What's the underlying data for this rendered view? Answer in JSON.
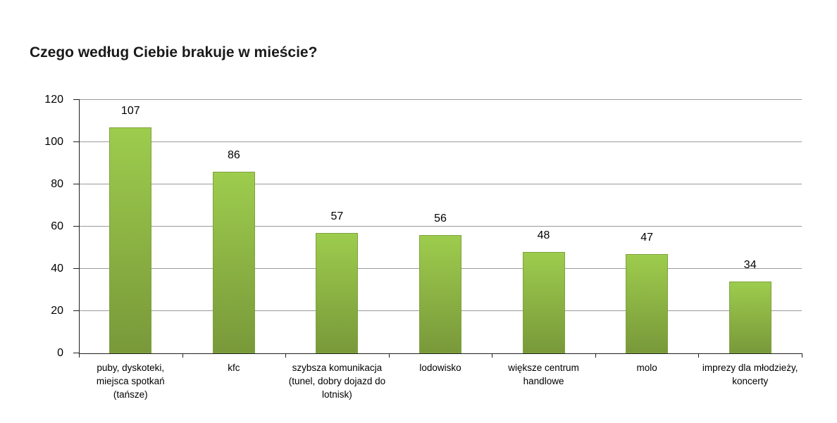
{
  "page": {
    "background": "#ffffff"
  },
  "chart_data": {
    "type": "bar",
    "title": "Czego według Ciebie brakuje w mieście?",
    "categories": [
      "puby, dyskoteki, miejsca spotkań (tańsze)",
      "kfc",
      "szybsza komunikacja (tunel, dobry dojazd do lotnisk)",
      "lodowisko",
      "większe centrum handlowe",
      "molo",
      "imprezy dla młodzieży, koncerty"
    ],
    "category_label_lines": [
      [
        "puby, dyskoteki,",
        "miejsca spotkań",
        "(tańsze)"
      ],
      [
        "kfc"
      ],
      [
        "szybsza komunikacja",
        "(tunel, dobry dojazd do",
        "lotnisk)"
      ],
      [
        "lodowisko"
      ],
      [
        "większe centrum",
        "handlowe"
      ],
      [
        "molo"
      ],
      [
        "imprezy dla młodzieży,",
        "koncerty"
      ]
    ],
    "values": [
      107,
      86,
      57,
      56,
      48,
      47,
      34
    ],
    "show_data_labels": true,
    "y_ticks": [
      0,
      20,
      40,
      60,
      80,
      100,
      120
    ],
    "ylim": [
      0,
      120
    ],
    "grid": true,
    "legend": null,
    "xlabel": "",
    "ylabel": ""
  },
  "colors": {
    "bar_gradient_top": "#9dcc4d",
    "bar_gradient_bottom": "#79993a",
    "bar_border": "#7fa23e",
    "gridline": "#9a9a9a",
    "axis": "#1f1f1f",
    "text": "#000000",
    "title_text": "#1a1a1a",
    "background": "#ffffff"
  }
}
